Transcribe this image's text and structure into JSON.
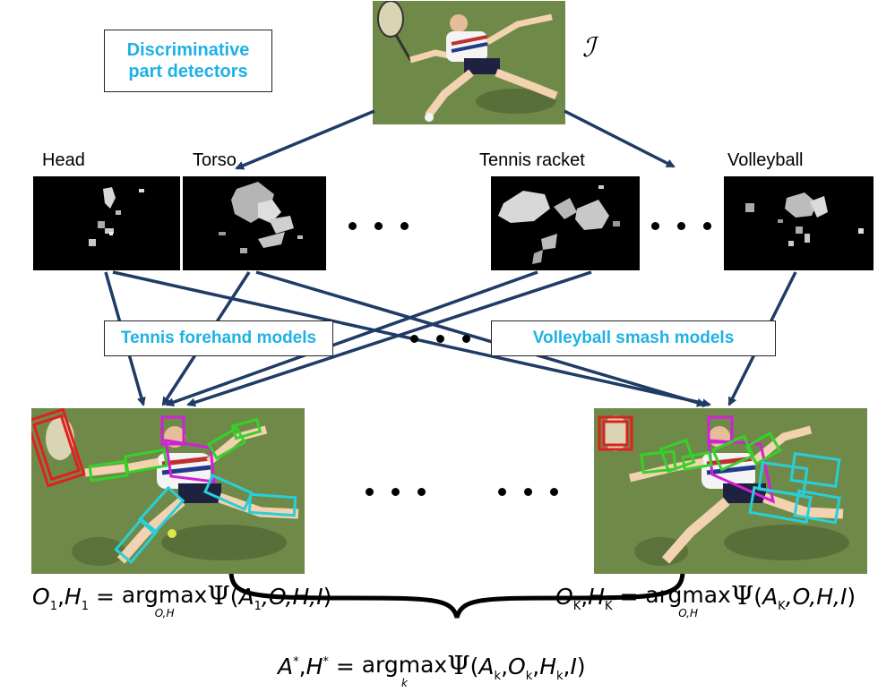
{
  "top_left_box": "Discriminative part detectors",
  "image_symbol": "ℐ",
  "part_labels": [
    "Head",
    "Torso",
    "Tennis racket",
    "Volleyball"
  ],
  "model_boxes": {
    "tennis": "Tennis forehand models",
    "volleyball": "Volleyball smash models"
  },
  "equations": {
    "left": {
      "lhs": "O",
      "lhs_sub": "1",
      "lhs2": "H",
      "lhs2_sub": "1",
      "argmax_under": "O,H",
      "args": "A",
      "args_sub": "1"
    },
    "right": {
      "lhs": "O",
      "lhs_sub": "K",
      "lhs2": "H",
      "lhs2_sub": "K",
      "argmax_under": "O,H",
      "args": "A",
      "args_sub": "K"
    },
    "bottom": {
      "lhs": "A",
      "lhs2": "H",
      "argmax_under": "k",
      "args": "A",
      "args_sub": "k"
    },
    "argmax": "argmax",
    "psi": "Ψ",
    "star": "*",
    "rest_left": ",O,H,I",
    "rest_right": ",O,H,I",
    "rest_bottom_O_sub": "k",
    "rest_bottom_H_sub": "k"
  },
  "colors": {
    "accent_text": "#1fb1e6",
    "arrow": "#1f3b66",
    "box_red": "#e02020",
    "box_magenta": "#d020d8",
    "box_green": "#36d12a",
    "box_cyan": "#28cfd8",
    "court": "#6f8a48"
  }
}
